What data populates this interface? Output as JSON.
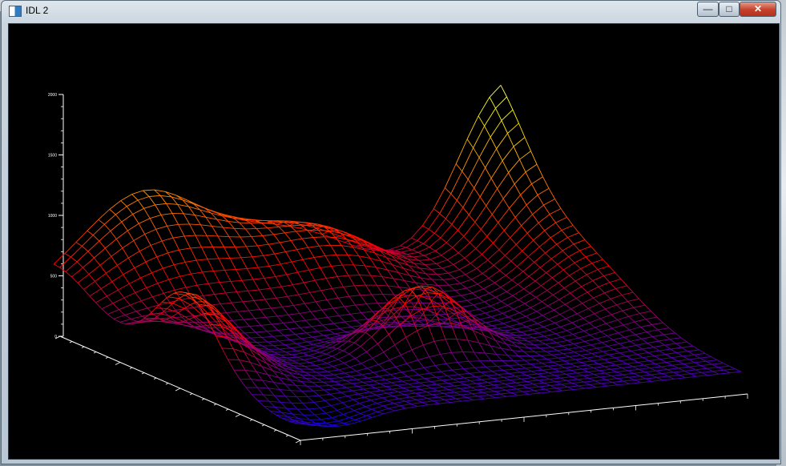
{
  "window": {
    "title": "IDL 2",
    "controls": {
      "minimize": "—",
      "maximize": "□",
      "close": "✕"
    }
  },
  "chart_data": {
    "type": "surface",
    "render": "wireframe mesh",
    "colormap": [
      "#0000ff",
      "#ff0000",
      "#ffff00",
      "#ffffff"
    ],
    "z_ticks": [
      0,
      500,
      1000,
      1500,
      2000
    ],
    "zlim": [
      0,
      2000
    ],
    "x_tick_count": 4,
    "y_tick_count": 4,
    "grid": false,
    "legend": "none"
  }
}
